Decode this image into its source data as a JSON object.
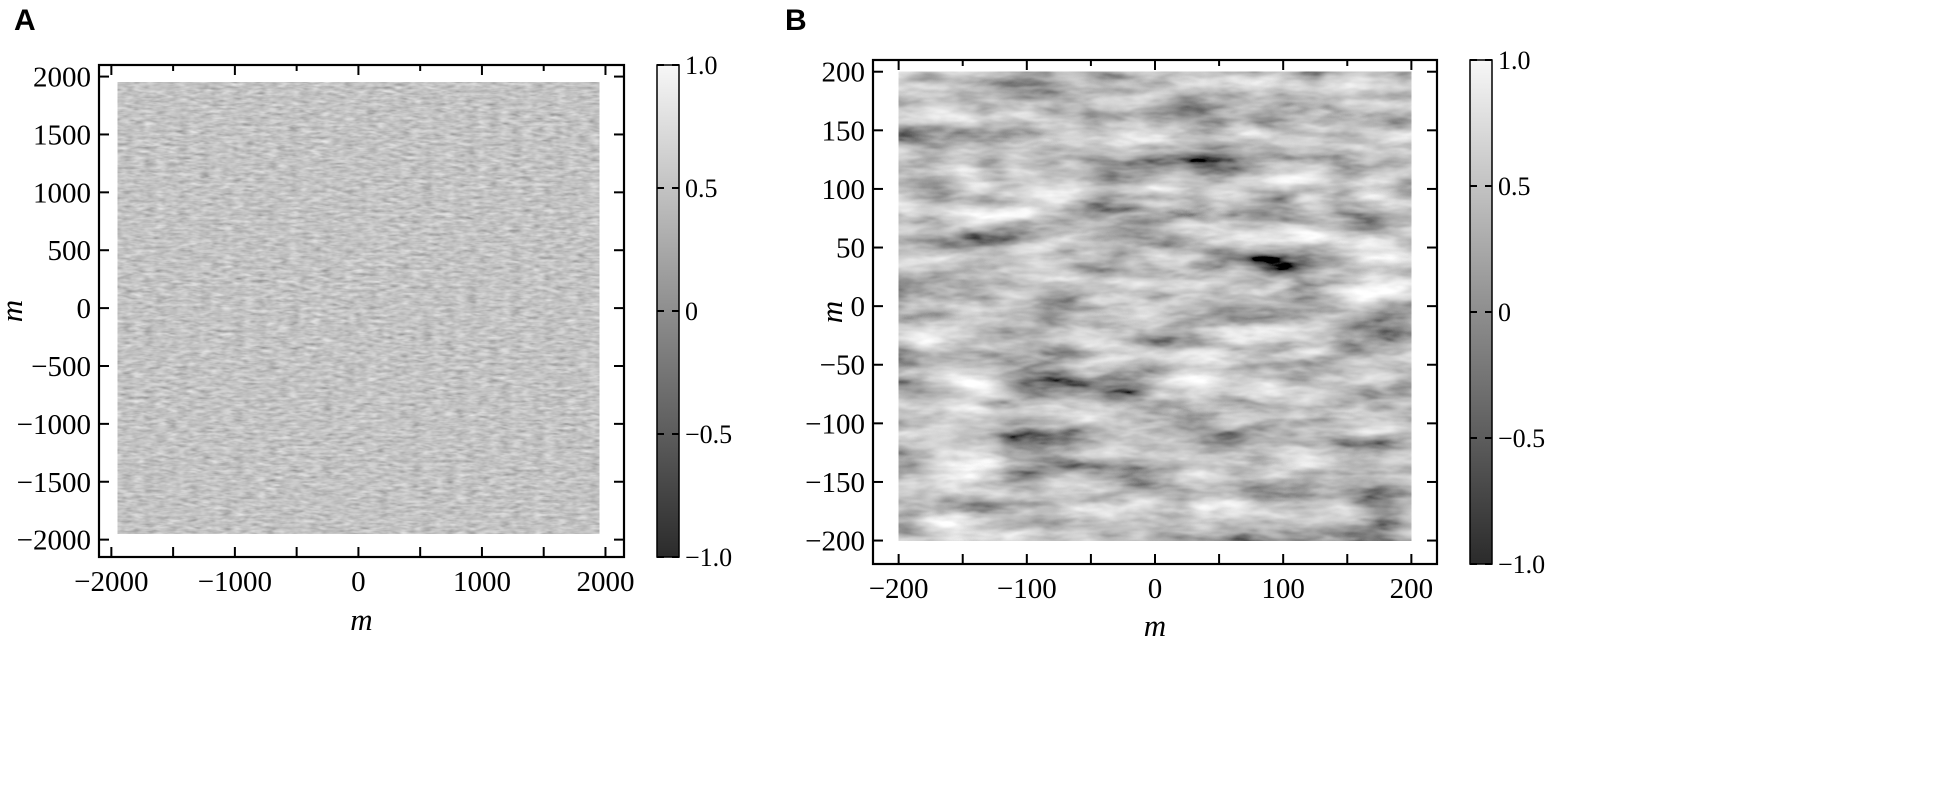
{
  "chart_data": [
    {
      "type": "heatmap",
      "panel": "A",
      "title": "",
      "xlabel": "m",
      "ylabel": "m",
      "xlim": [
        -2100,
        2150
      ],
      "ylim": [
        -2150,
        2100
      ],
      "data_extent": [
        -1950,
        1950,
        -1950,
        1950
      ],
      "xticks": [
        -2000,
        -1000,
        0,
        1000,
        2000
      ],
      "xtick_labels": [
        "−2000",
        "−1000",
        "0",
        "1000",
        "2000"
      ],
      "xminor": [
        -1500,
        -500,
        500,
        1500
      ],
      "yticks": [
        -2000,
        -1500,
        -1000,
        -500,
        0,
        500,
        1000,
        1500,
        2000
      ],
      "ytick_labels": [
        "−2000",
        "−1500",
        "−1000",
        "−500",
        "0",
        "500",
        "1000",
        "1500",
        "2000"
      ],
      "colormap": "gray",
      "vmin": -1.0,
      "vmax": 1.0,
      "colorbar_ticks": [
        1.0,
        0.5,
        0,
        -0.5,
        -1.0
      ],
      "colorbar_labels": [
        "1.0",
        "0.5",
        "0",
        "−0.5",
        "−1.0"
      ],
      "texture": "fine"
    },
    {
      "type": "heatmap",
      "panel": "B",
      "title": "",
      "xlabel": "m",
      "ylabel": "m",
      "xlim": [
        -220,
        220
      ],
      "ylim": [
        -220,
        210
      ],
      "data_extent": [
        -200,
        200,
        -200,
        200
      ],
      "xticks": [
        -200,
        -100,
        0,
        100,
        200
      ],
      "xtick_labels": [
        "−200",
        "−100",
        "0",
        "100",
        "200"
      ],
      "xminor": [
        -150,
        -50,
        50,
        150
      ],
      "yticks": [
        -200,
        -150,
        -100,
        -50,
        0,
        50,
        100,
        150,
        200
      ],
      "ytick_labels": [
        "−200",
        "−150",
        "−100",
        "−50",
        "0",
        "50",
        "100",
        "150",
        "200"
      ],
      "colormap": "gray",
      "vmin": -1.0,
      "vmax": 1.0,
      "colorbar_ticks": [
        1.0,
        0.5,
        0,
        -0.5,
        -1.0
      ],
      "colorbar_labels": [
        "1.0",
        "0.5",
        "0",
        "−0.5",
        "−1.0"
      ],
      "texture": "coarse"
    }
  ],
  "colors": {
    "background": "#ffffff",
    "axis": "#000000",
    "cmap_low": "#2b2b2b",
    "cmap_high": "#f7f7f7"
  }
}
